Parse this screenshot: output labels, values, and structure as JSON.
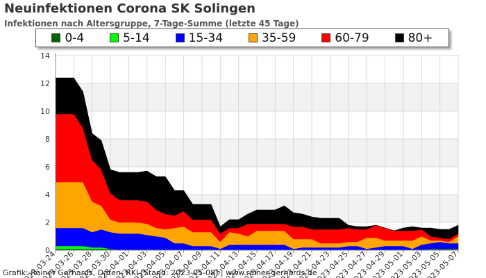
{
  "title": "Neuinfektionen Corona SK Solingen",
  "subtitle": "Infektionen nach Altersgruppe, 7-Tage-Summe (letzte 45 Tage)",
  "footer": "Grafik: Rainer Gerhards, Daten: RKI (Stand: 2023-05-08) | www.rainer-gerhards.de",
  "chart_data": {
    "type": "area",
    "stacked": true,
    "title": "Neuinfektionen Corona SK Solingen",
    "subtitle": "Infektionen nach Altersgruppe, 7-Tage-Summe (letzte 45 Tage)",
    "ylim": [
      0,
      14
    ],
    "y_ticks": [
      0,
      2,
      4,
      6,
      8,
      10,
      12,
      14
    ],
    "grid": true,
    "legend_position": "top",
    "x": [
      "2023-03-24",
      "2023-03-25",
      "2023-03-26",
      "2023-03-27",
      "2023-03-28",
      "2023-03-29",
      "2023-03-30",
      "2023-03-31",
      "2023-04-01",
      "2023-04-02",
      "2023-04-03",
      "2023-04-04",
      "2023-04-05",
      "2023-04-06",
      "2023-04-07",
      "2023-04-08",
      "2023-04-09",
      "2023-04-10",
      "2023-04-11",
      "2023-04-12",
      "2023-04-13",
      "2023-04-14",
      "2023-04-15",
      "2023-04-16",
      "2023-04-17",
      "2023-04-18",
      "2023-04-19",
      "2023-04-20",
      "2023-04-21",
      "2023-04-22",
      "2023-04-23",
      "2023-04-24",
      "2023-04-25",
      "2023-04-26",
      "2023-04-27",
      "2023-04-28",
      "2023-04-29",
      "2023-04-30",
      "2023-05-01",
      "2023-05-02",
      "2023-05-03",
      "2023-05-04",
      "2023-05-05",
      "2023-05-06",
      "2023-05-07"
    ],
    "x_tick_labels": [
      "2023-03-24",
      "2023-03-26",
      "2023-03-28",
      "2023-03-30",
      "2023-04-01",
      "2023-04-03",
      "2023-04-05",
      "2023-04-07",
      "2023-04-09",
      "2023-04-11",
      "2023-04-13",
      "2023-04-15",
      "2023-04-17",
      "2023-04-19",
      "2023-04-21",
      "2023-04-23",
      "2023-04-25",
      "2023-04-27",
      "2023-04-29",
      "2023-05-01",
      "2023-05-03",
      "2023-05-05",
      "2023-05-07"
    ],
    "series": [
      {
        "name": "0-4",
        "color": "#006400",
        "values": [
          0.1,
          0.1,
          0.1,
          0.1,
          0.1,
          0.1,
          0.1,
          0,
          0,
          0,
          0,
          0,
          0,
          0,
          0,
          0,
          0,
          0,
          0,
          0,
          0,
          0,
          0,
          0,
          0,
          0,
          0,
          0,
          0,
          0,
          0,
          0,
          0,
          0,
          0,
          0,
          0,
          0,
          0,
          0,
          0,
          0.1,
          0.1,
          0.1,
          0.1
        ]
      },
      {
        "name": "5-14",
        "color": "#00ff00",
        "values": [
          0.2,
          0.2,
          0.2,
          0.2,
          0.1,
          0.1,
          0,
          0,
          0,
          0,
          0,
          0,
          0,
          0,
          0,
          0,
          0,
          0,
          0,
          0,
          0,
          0,
          0,
          0,
          0,
          0,
          0,
          0,
          0,
          0,
          0,
          0,
          0,
          0,
          0,
          0,
          0,
          0,
          0,
          0,
          0,
          0,
          0,
          0,
          0
        ]
      },
      {
        "name": "15-34",
        "color": "#0000ff",
        "values": [
          1.3,
          1.3,
          1.3,
          1.3,
          1.1,
          1.3,
          1.2,
          1.2,
          1.2,
          1.2,
          1.1,
          1.0,
          0.9,
          0.5,
          0.5,
          0.3,
          0.3,
          0.3,
          0.1,
          0.4,
          0.4,
          0.4,
          0.4,
          0.4,
          0.4,
          0.4,
          0.1,
          0.2,
          0.2,
          0.2,
          0.2,
          0.2,
          0.3,
          0.3,
          0.1,
          0.2,
          0.3,
          0.3,
          0.3,
          0.1,
          0.4,
          0.4,
          0.5,
          0.4,
          0.4
        ]
      },
      {
        "name": "35-59",
        "color": "#ffa500",
        "values": [
          3.3,
          3.3,
          3.3,
          3.3,
          2.2,
          1.7,
          0.9,
          0.8,
          0.8,
          0.8,
          0.8,
          0.6,
          0.6,
          1.1,
          1.2,
          1.0,
          1.0,
          1.0,
          0.5,
          0.9,
          0.8,
          0.6,
          1.0,
          1.0,
          1.0,
          1.0,
          0.7,
          0.6,
          0.6,
          0.3,
          0.3,
          0.3,
          0.3,
          0.3,
          0.8,
          0.7,
          0.4,
          0.4,
          0.4,
          0.6,
          0.6,
          0.2,
          0.1,
          0.1,
          0.5
        ]
      },
      {
        "name": "60-79",
        "color": "#ff0000",
        "values": [
          4.9,
          4.9,
          4.9,
          3.9,
          3.0,
          2.6,
          1.9,
          1.6,
          1.6,
          1.6,
          1.6,
          1.3,
          1.1,
          0.9,
          1.1,
          0.9,
          0.9,
          0.9,
          0.6,
          0.3,
          0.4,
          0.9,
          0.5,
          0.5,
          0.5,
          0.5,
          0.9,
          0.9,
          0.7,
          1.0,
          1.0,
          1.0,
          1.0,
          0.9,
          0.6,
          0.9,
          0.9,
          0.7,
          0.7,
          0.7,
          0.5,
          0.3,
          0.2,
          0.2,
          0.2
        ]
      },
      {
        "name": "80+",
        "color": "#000000",
        "values": [
          2.6,
          2.6,
          2.6,
          2.6,
          1.9,
          2.1,
          1.7,
          2.0,
          2.0,
          2.0,
          2.2,
          2.4,
          2.7,
          1.8,
          1.5,
          1.1,
          1.1,
          1.1,
          0.5,
          0.6,
          0.6,
          0.7,
          1.0,
          1.0,
          1.0,
          1.3,
          1.0,
          0.9,
          0.9,
          0.8,
          0.8,
          0.8,
          0.2,
          0.2,
          0.2,
          0,
          0,
          0,
          0.2,
          0.3,
          0.1,
          0.6,
          0.6,
          0.7,
          0.6
        ]
      }
    ]
  }
}
